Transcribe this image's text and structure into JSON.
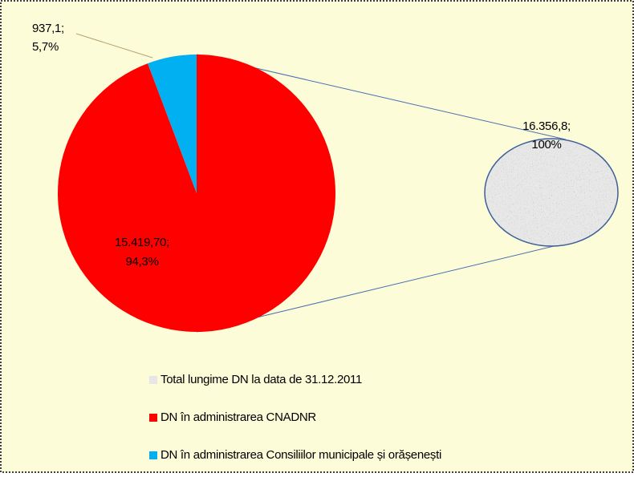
{
  "chart_data": {
    "type": "pie",
    "categories": [
      "Total lungime DN la data de 31.12.2011",
      "DN în administrarea CNADNR",
      "DN în administrarea Consiliilor municipale și orășenești"
    ],
    "values": [
      16356.8,
      15419.7,
      937.1
    ],
    "percentages": [
      100,
      94.3,
      5.7
    ],
    "value_labels": [
      [
        "16.356,8;",
        "100%"
      ],
      [
        "15.419,70;",
        "94,3%"
      ],
      [
        "937,1;",
        "5,7%"
      ]
    ],
    "colors": [
      "#a0a0a0",
      "#ff0000",
      "#00b0f0"
    ]
  }
}
